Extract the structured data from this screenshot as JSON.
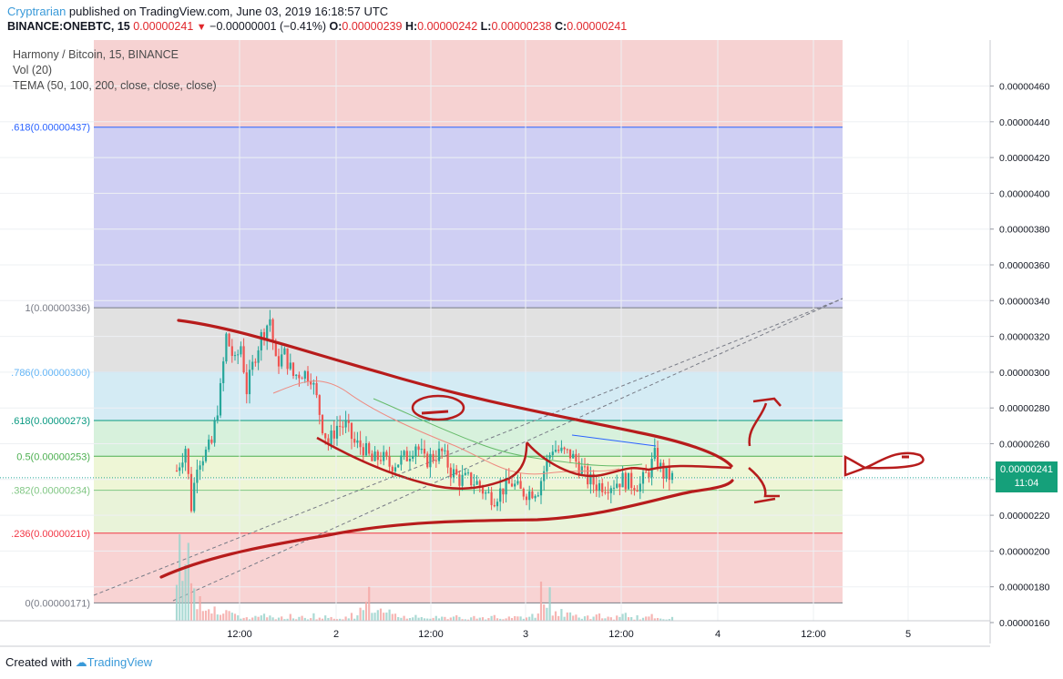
{
  "header": {
    "author": "Cryptrarian",
    "published": "published on TradingView.com, June 03, 2019 16:18:57 UTC",
    "symbol": "BINANCE:ONEBTC, 15",
    "last": "0.00000241",
    "change": "−0.00000001 (−0.41%)",
    "o_label": "O:",
    "o": "0.00000239",
    "h_label": "H:",
    "h": "0.00000242",
    "l_label": "L:",
    "l": "0.00000238",
    "c_label": "C:",
    "c": "0.00000241"
  },
  "legend": {
    "title": "Harmony / Bitcoin, 15, BINANCE",
    "vol": "Vol (20)",
    "tema": "TEMA (50, 100, 200, close, close, close)"
  },
  "price_tag": {
    "price": "0.00000241",
    "countdown": "11:04"
  },
  "footer": {
    "created_with": "Created with",
    "brand": "TradingView"
  },
  "colors": {
    "up": "#26a69a",
    "down": "#ef5350",
    "drawing": "#b71c1c",
    "fib_line_0": "#787b86",
    "fib_line_236": "#f23645",
    "fib_line_382": "#81c784",
    "fib_line_5": "#4caf50",
    "fib_line_618": "#089981",
    "fib_line_786": "#64b5f6",
    "fib_line_1": "#787b86",
    "fib_line_1618": "#2962ff",
    "price_tag": "#15a07a"
  },
  "chart_data": {
    "type": "candlestick",
    "symbol": "ONEBTC",
    "timeframe": "15",
    "exchange": "BINANCE",
    "x_ticks": [
      "12:00",
      "2",
      "12:00",
      "3",
      "12:00",
      "4",
      "12:00",
      "5"
    ],
    "y_ticks": [
      1.6e-06,
      1.8e-06,
      2e-06,
      2.2e-06,
      2.4e-06,
      2.6e-06,
      2.8e-06,
      3e-06,
      3.2e-06,
      3.4e-06,
      3.6e-06,
      3.8e-06,
      4e-06,
      4.2e-06,
      4.4e-06,
      4.6e-06
    ],
    "y_tick_labels": [
      "0.00000160",
      "0.00000180",
      "0.00000200",
      "0.00000220",
      "0.00000240",
      "0.00000260",
      "0.00000280",
      "0.00000300",
      "0.00000320",
      "0.00000340",
      "0.00000360",
      "0.00000380",
      "0.00000400",
      "0.00000420",
      "0.00000440",
      "0.00000460"
    ],
    "ylim": [
      1.555e-06,
      4.708e-06
    ],
    "fib_levels": [
      {
        "label": "0(0.00000171)",
        "ratio": 0,
        "price": 1.71e-06
      },
      {
        "label": ".236(0.00000210)",
        "ratio": 0.236,
        "price": 2.1e-06
      },
      {
        "label": ".382(0.00000234)",
        "ratio": 0.382,
        "price": 2.34e-06
      },
      {
        "label": "0.5(0.00000253)",
        "ratio": 0.5,
        "price": 2.53e-06
      },
      {
        "label": ".618(0.00000273)",
        "ratio": 0.618,
        "price": 2.73e-06
      },
      {
        "label": ".786(0.00000300)",
        "ratio": 0.786,
        "price": 3e-06
      },
      {
        "label": "1(0.00000336)",
        "ratio": 1,
        "price": 3.36e-06
      },
      {
        "label": ".618(0.00000437)",
        "ratio": 1.618,
        "price": 4.37e-06
      }
    ],
    "current_price": 2.41e-06,
    "price_path": [
      [
        0,
        2.45e-06
      ],
      [
        3,
        2.58e-06
      ],
      [
        5,
        2.25e-06
      ],
      [
        7,
        2.5e-06
      ],
      [
        10,
        2.55e-06
      ],
      [
        12,
        2.6e-06
      ],
      [
        15,
        2.9e-06
      ],
      [
        17,
        3.2e-06
      ],
      [
        20,
        3.05e-06
      ],
      [
        22,
        3.15e-06
      ],
      [
        24,
        2.9e-06
      ],
      [
        27,
        3.1e-06
      ],
      [
        29,
        3.2e-06
      ],
      [
        32,
        3.3e-06
      ],
      [
        34,
        3.05e-06
      ],
      [
        37,
        3.1e-06
      ],
      [
        40,
        2.98e-06
      ],
      [
        43,
        3e-06
      ],
      [
        46,
        2.98e-06
      ],
      [
        48,
        2.85e-06
      ],
      [
        50,
        2.7e-06
      ],
      [
        52,
        2.6e-06
      ],
      [
        55,
        2.7e-06
      ],
      [
        58,
        2.7e-06
      ],
      [
        61,
        2.6e-06
      ],
      [
        64,
        2.58e-06
      ],
      [
        67,
        2.5e-06
      ],
      [
        70,
        2.53e-06
      ],
      [
        73,
        2.48e-06
      ],
      [
        76,
        2.5e-06
      ],
      [
        79,
        2.53e-06
      ],
      [
        82,
        2.6e-06
      ],
      [
        85,
        2.5e-06
      ],
      [
        88,
        2.53e-06
      ],
      [
        91,
        2.55e-06
      ],
      [
        94,
        2.45e-06
      ],
      [
        97,
        2.4e-06
      ],
      [
        100,
        2.4e-06
      ],
      [
        103,
        2.38e-06
      ],
      [
        106,
        2.32e-06
      ],
      [
        109,
        2.3e-06
      ],
      [
        112,
        2.35e-06
      ],
      [
        115,
        2.38e-06
      ],
      [
        118,
        2.33e-06
      ],
      [
        121,
        2.33e-06
      ],
      [
        124,
        2.35e-06
      ],
      [
        127,
        2.5e-06
      ],
      [
        129,
        2.58e-06
      ],
      [
        132,
        2.55e-06
      ],
      [
        135,
        2.54e-06
      ],
      [
        138,
        2.48e-06
      ],
      [
        141,
        2.4e-06
      ],
      [
        144,
        2.37e-06
      ],
      [
        147,
        2.37e-06
      ],
      [
        150,
        2.38e-06
      ],
      [
        153,
        2.4e-06
      ],
      [
        156,
        2.38e-06
      ],
      [
        159,
        2.37e-06
      ],
      [
        162,
        2.45e-06
      ],
      [
        164,
        2.53e-06
      ],
      [
        167,
        2.43e-06
      ],
      [
        170,
        2.41e-06
      ]
    ],
    "volume": [
      12,
      30,
      22,
      18,
      25,
      14,
      10,
      9,
      11,
      7,
      6,
      8,
      5,
      6,
      5,
      4,
      5,
      4,
      4,
      3,
      5,
      6,
      4,
      3,
      4,
      3,
      3,
      4,
      3,
      5,
      6,
      3,
      4,
      3,
      4,
      3,
      3,
      4,
      3,
      5,
      4,
      3,
      3,
      4,
      3,
      3,
      5,
      6,
      4,
      3,
      3,
      4,
      3,
      5,
      4,
      3,
      3,
      4,
      3,
      3,
      6,
      4
    ]
  }
}
